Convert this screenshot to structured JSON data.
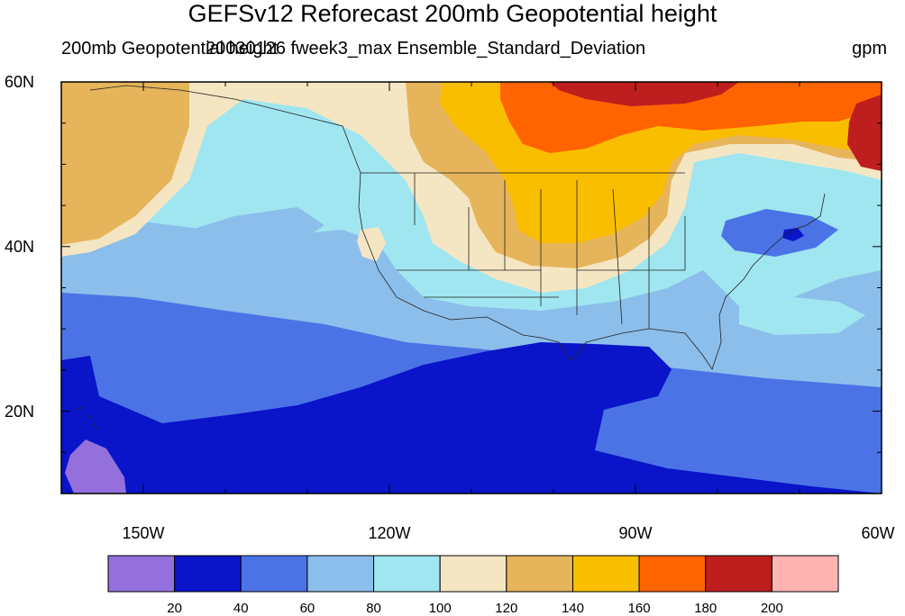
{
  "title": "GEFSv12 Reforecast 200mb Geopotential height",
  "subtitle_left": "200mb Geopotential height",
  "subtitle_center": "20030126 fweek3_max Ensemble_Standard_Deviation",
  "units": "gpm",
  "map": {
    "projection": "cylindrical-equidistant",
    "lon_range": [
      -160,
      -60
    ],
    "lat_range": [
      10,
      60
    ],
    "coastlines": true,
    "state_boundaries": true
  },
  "lat_labels": [
    {
      "lat": 60,
      "label": "60N"
    },
    {
      "lat": 40,
      "label": "40N"
    },
    {
      "lat": 20,
      "label": "20N"
    }
  ],
  "lon_labels": [
    {
      "lon": -150,
      "label": "150W"
    },
    {
      "lon": -120,
      "label": "120W"
    },
    {
      "lon": -90,
      "label": "90W"
    },
    {
      "lon": -60,
      "label": "60W"
    }
  ],
  "colorbar": {
    "levels": [
      20,
      40,
      60,
      80,
      100,
      120,
      140,
      160,
      180,
      200
    ],
    "colors": [
      "#9370db",
      "#0a14c8",
      "#4b73e6",
      "#8cbeeb",
      "#a0e6f0",
      "#f5e6c3",
      "#e6b45a",
      "#fabe00",
      "#ff6400",
      "#be1e1e",
      "#ffb4b4"
    ]
  },
  "chart_data": {
    "type": "heatmap",
    "variable": "200mb Geopotential height Ensemble_Standard_Deviation",
    "units": "gpm",
    "x_range": [
      -160,
      -60
    ],
    "y_range": [
      10,
      60
    ],
    "contour_regions": [
      {
        "band": "0-20",
        "where": "near Hawaii, lower left"
      },
      {
        "band": "20-40",
        "where": "subtropical Pacific and Gulf of Mexico"
      },
      {
        "band": "40-60",
        "where": "mid-latitude Pacific band, NE US low"
      },
      {
        "band": "60-80",
        "where": "central Pacific, western Atlantic"
      },
      {
        "band": "80-100",
        "where": "western US and Pacific near 40N"
      },
      {
        "band": "100-120",
        "where": "Gulf of Alaska edges, Great Plains"
      },
      {
        "band": "120-140",
        "where": "NE Pacific, north-central US"
      },
      {
        "band": "140-160",
        "where": "central Canada, northern Plains"
      },
      {
        "band": "160-180",
        "where": "Hudson Bay region"
      },
      {
        "band": "180-200",
        "where": "northern Canada near 60N"
      }
    ]
  }
}
